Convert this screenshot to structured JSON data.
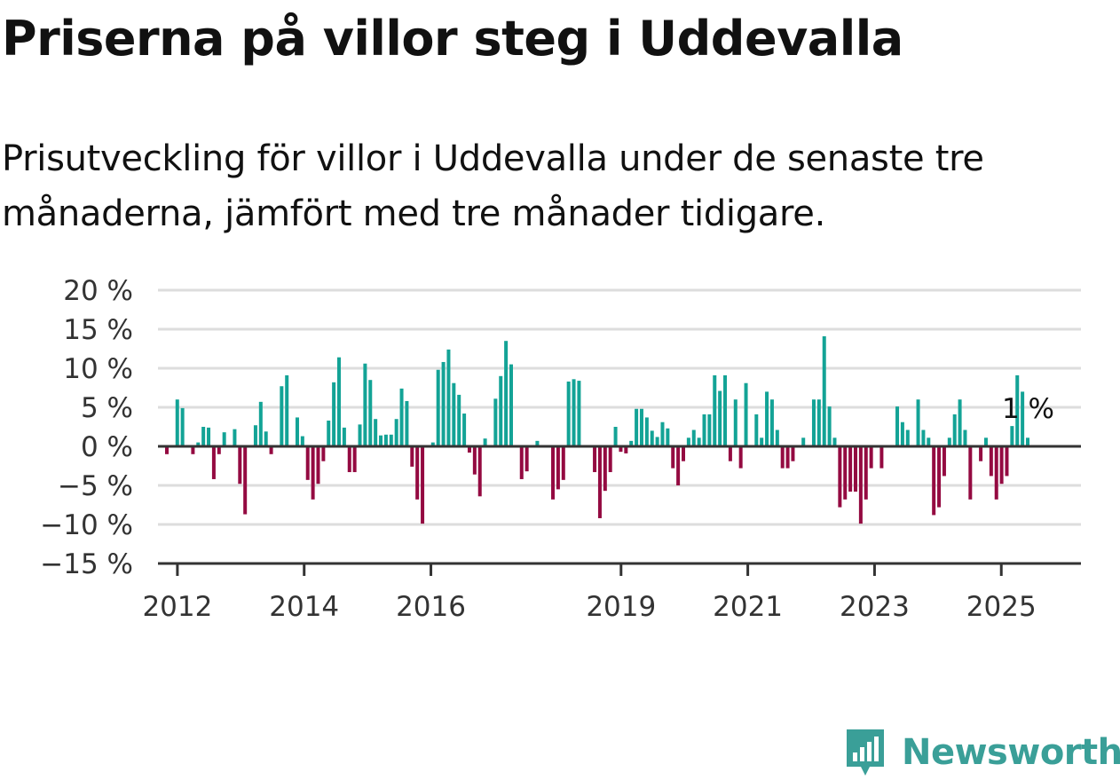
{
  "title": "Priserna på villor steg i Uddevalla",
  "subtitle": "Prisutveckling för villor i Uddevalla under de senaste tre månaderna, jämfört med tre månader tidigare.",
  "brand": {
    "name": "Newsworthy",
    "color": "#3a9f98",
    "icon": "bar-chart-pin-icon"
  },
  "chart_data": {
    "type": "bar",
    "ylim": [
      -15,
      20
    ],
    "yticks": [
      20,
      15,
      10,
      5,
      0,
      -5,
      -10,
      -15
    ],
    "ytick_labels": [
      "20 %",
      "15 %",
      "10 %",
      "5 %",
      "0 %",
      "−5 %",
      "−10 %",
      "−15 %"
    ],
    "x_start": "2011-11",
    "x_end": "2025-06",
    "xticks": [
      2012,
      2014,
      2016,
      2019,
      2021,
      2023,
      2025
    ],
    "grid": true,
    "colors": {
      "positive": "#13a396",
      "negative": "#940a41",
      "grid": "#dddddd",
      "axis": "#333333"
    },
    "last_value_label": "1 %",
    "values": [
      -1,
      0,
      6,
      4.9,
      0,
      -1,
      0.5,
      2.5,
      2.4,
      -4.2,
      -1,
      1.8,
      0,
      2.2,
      -4.8,
      -8.7,
      0,
      2.7,
      5.7,
      1.9,
      -1,
      0,
      7.7,
      9.1,
      0,
      3.7,
      1.3,
      -4.3,
      -6.8,
      -4.8,
      -1.9,
      3.3,
      8.2,
      11.4,
      2.4,
      -3.3,
      -3.3,
      2.8,
      10.6,
      8.5,
      3.5,
      1.4,
      1.5,
      1.5,
      3.5,
      7.4,
      5.8,
      -2.6,
      -6.8,
      -9.9,
      0,
      0.5,
      9.8,
      10.8,
      12.4,
      8.1,
      6.6,
      4.2,
      -0.8,
      -3.6,
      -6.4,
      1,
      0,
      6.1,
      9,
      13.5,
      10.5,
      0,
      -4.2,
      -3.2,
      0,
      0.7,
      0,
      0,
      -6.8,
      -5.5,
      -4.3,
      8.3,
      8.6,
      8.4,
      0,
      0,
      -3.3,
      -9.2,
      -5.7,
      -3.3,
      2.5,
      -0.7,
      -0.9,
      0.7,
      4.8,
      4.8,
      3.7,
      2,
      1.2,
      3.1,
      2.3,
      -2.8,
      -5,
      -1.9,
      1.1,
      2.1,
      1.1,
      4.1,
      4.1,
      9.1,
      7.1,
      9.1,
      -1.9,
      6,
      -2.8,
      8.1,
      0,
      4.1,
      1.1,
      7,
      6,
      2.1,
      -2.8,
      -2.8,
      -1.9,
      0,
      1.1,
      0,
      6,
      6,
      14.1,
      5.1,
      1.1,
      -7.8,
      -6.8,
      -5.8,
      -5.8,
      -9.9,
      -6.8,
      -2.8,
      0,
      -2.8,
      0,
      0,
      5.1,
      3.1,
      2.1,
      0,
      6,
      2.1,
      1.1,
      -8.8,
      -7.8,
      -3.8,
      1.1,
      4.1,
      6,
      2.1,
      -6.8,
      0,
      -1.9,
      1.1,
      -3.8,
      -6.8,
      -4.8,
      -3.8,
      2.6,
      9.1,
      7,
      1.1
    ]
  }
}
